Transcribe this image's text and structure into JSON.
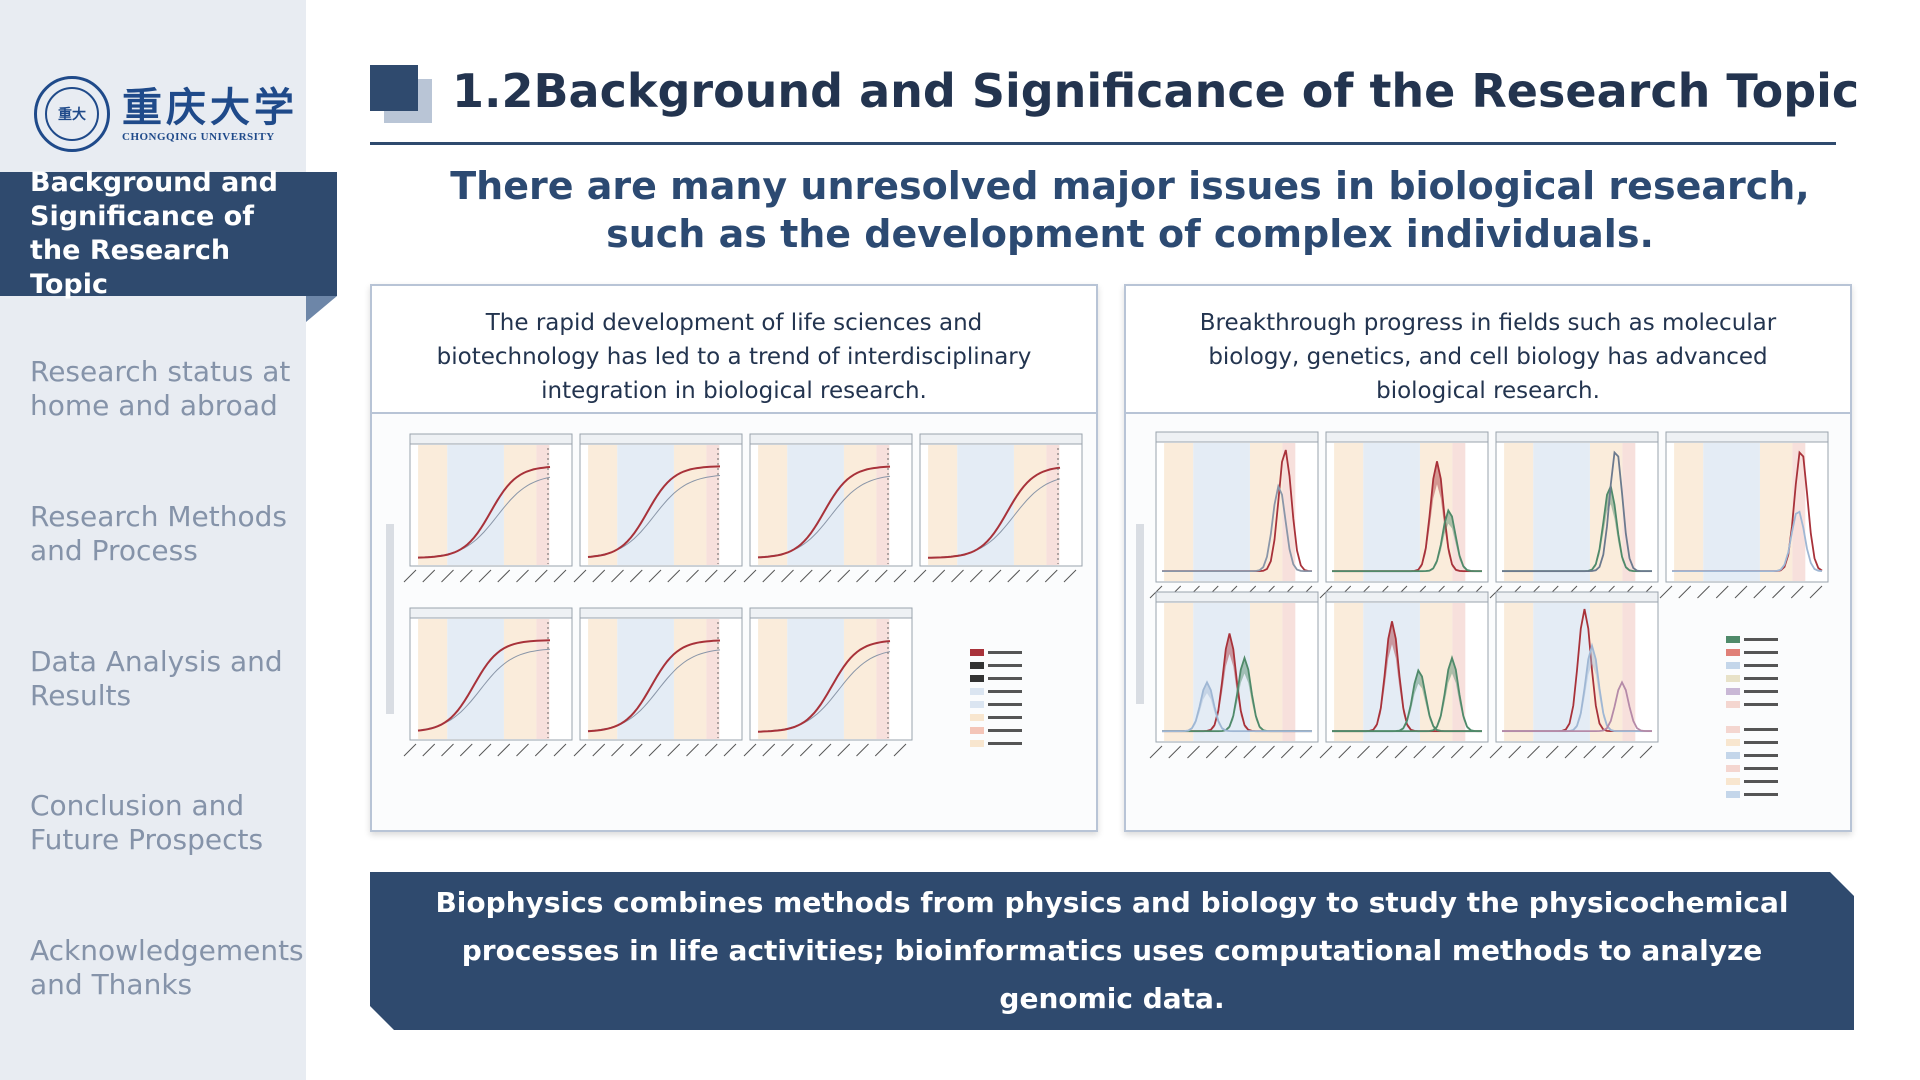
{
  "logo": {
    "seal_text": "重大",
    "name_cn": "重庆大学",
    "name_en": "CHONGQING UNIVERSITY"
  },
  "sidebar": {
    "active": "Background and Significance of the Research Topic",
    "items": [
      {
        "label": "Research status at home and abroad"
      },
      {
        "label": "Research Methods and Process"
      },
      {
        "label": "Data Analysis and Results"
      },
      {
        "label": "Conclusion and Future Prospects"
      },
      {
        "label": "Acknowledgements and Thanks"
      }
    ]
  },
  "header": {
    "title": "1.2Background and Significance of the Research Topic"
  },
  "subtitle": "There are many unresolved major issues in biological research, such as the development of complex individuals.",
  "cards": [
    {
      "caption": "The rapid development of life sciences and biotechnology has led to a trend of interdisciplinary integration in biological research."
    },
    {
      "caption": "Breakthrough progress in fields such as molecular biology, genetics, and cell biology has advanced biological research."
    }
  ],
  "banner": {
    "text": "Biophysics combines methods from physics and biology to study the physicochemical processes in life activities; bioinformatics uses computational methods to analyze genomic data."
  },
  "colors": {
    "primary": "#2f4a6e",
    "sidebar_bg": "#e8ecf2",
    "text_dark": "#23344f",
    "nav_muted": "#8593a9",
    "curve_red": "#a8323a",
    "curve_green": "#4f8a6a",
    "band_blue": "#dbe5f1",
    "band_orange": "#f8e6cf"
  }
}
